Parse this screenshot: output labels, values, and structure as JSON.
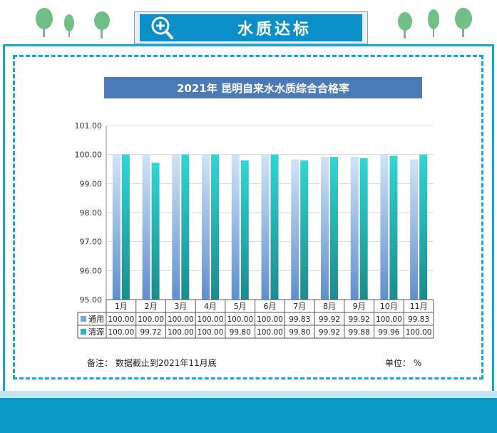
{
  "header": {
    "title": "水质达标"
  },
  "colors": {
    "accent": "#17a6cf",
    "banner": "#0b8fc9",
    "chart_title_bg": "#4a7bb7"
  },
  "chart_data": {
    "type": "bar",
    "title": "2021年 昆明自来水水质综合合格率",
    "categories": [
      "1月",
      "2月",
      "3月",
      "4月",
      "5月",
      "6月",
      "7月",
      "8月",
      "9月",
      "10月",
      "11月"
    ],
    "series": [
      {
        "name": "通用",
        "values": [
          100.0,
          100.0,
          100.0,
          100.0,
          100.0,
          100.0,
          99.83,
          99.92,
          99.92,
          100.0,
          99.83
        ],
        "labels": [
          "100.00",
          "100.00",
          "100.00",
          "100.00",
          "100.00",
          "100.00",
          "99.83",
          "99.92",
          "99.92",
          "100.00",
          "99.83"
        ]
      },
      {
        "name": "清源",
        "values": [
          100.0,
          99.72,
          100.0,
          100.0,
          99.8,
          100.0,
          99.8,
          99.92,
          99.88,
          99.96,
          100.0
        ],
        "labels": [
          "100.00",
          "99.72",
          "100.00",
          "100.00",
          "99.80",
          "100.00",
          "99.80",
          "99.92",
          "99.88",
          "99.96",
          "100.00"
        ]
      }
    ],
    "ylim": [
      95,
      101
    ],
    "yticks": [
      "95.00",
      "96.00",
      "97.00",
      "98.00",
      "99.00",
      "100.00",
      "101.00"
    ],
    "grid": true,
    "legend": "data-table"
  },
  "notes": {
    "left": "备注：  数据截止到2021年11月底",
    "right": "单位：  %"
  }
}
